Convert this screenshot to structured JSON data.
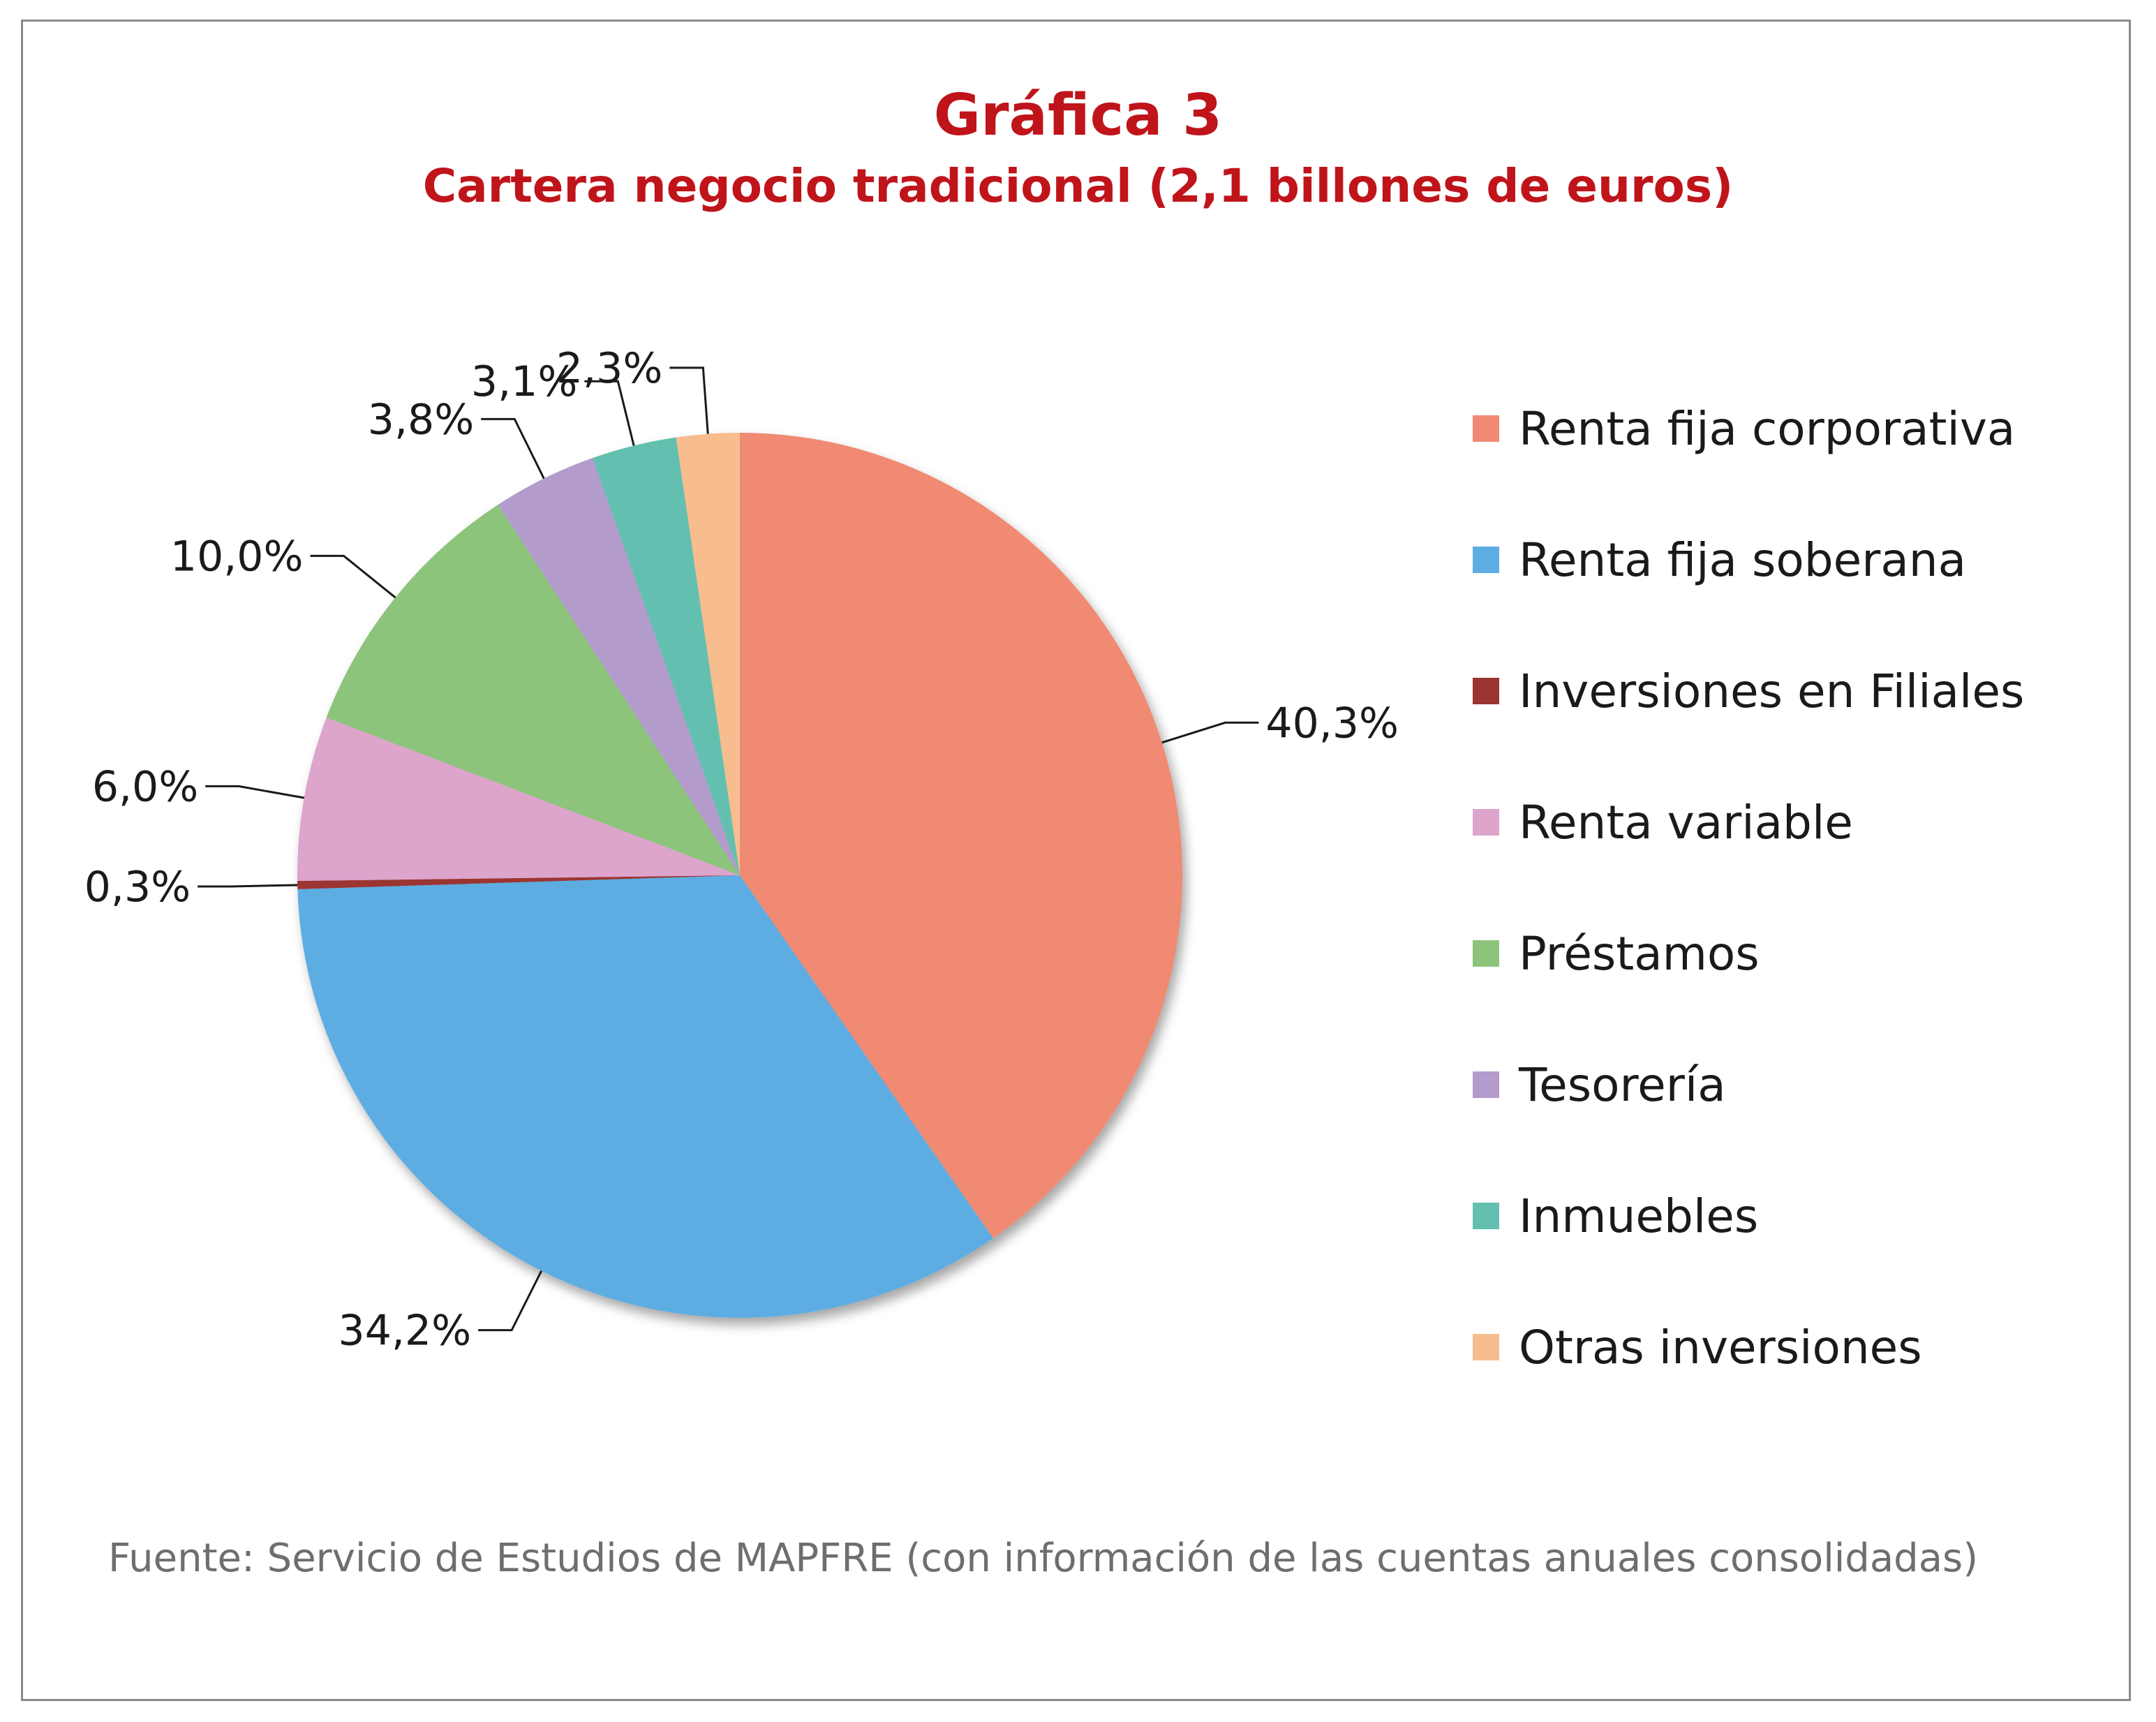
{
  "header": {
    "title": "Gráfica 3",
    "subtitle": "Cartera negocio tradicional (2,1 billones de euros)"
  },
  "chart_data": {
    "type": "pie",
    "title": "Gráfica 3",
    "subtitle": "Cartera negocio tradicional (2,1 billones de euros)",
    "start": "12 o'clock, clockwise",
    "legend_position": "right",
    "slices": [
      {
        "label": "Renta fija corporativa",
        "value": 40.3,
        "display": "40,3%",
        "color": "#f08a73"
      },
      {
        "label": "Renta fija soberana",
        "value": 34.2,
        "display": "34,2%",
        "color": "#5dade2"
      },
      {
        "label": "Inversiones en Filiales",
        "value": 0.3,
        "display": "0,3%",
        "color": "#9b3433"
      },
      {
        "label": "Renta variable",
        "value": 6.0,
        "display": "6,0%",
        "color": "#dda4cc"
      },
      {
        "label": "Préstamos",
        "value": 10.0,
        "display": "10,0%",
        "color": "#8dc47b"
      },
      {
        "label": "Tesorería",
        "value": 3.8,
        "display": "3,8%",
        "color": "#b39bcb"
      },
      {
        "label": "Inmuebles",
        "value": 3.1,
        "display": "3,1%",
        "color": "#63c0b0"
      },
      {
        "label": "Otras inversiones",
        "value": 2.3,
        "display": "2,3%",
        "color": "#f7bd8e"
      }
    ]
  },
  "footer": {
    "source": "Fuente: Servicio de Estudios de MAPFRE (con información de las cuentas anuales consolidadas)"
  }
}
